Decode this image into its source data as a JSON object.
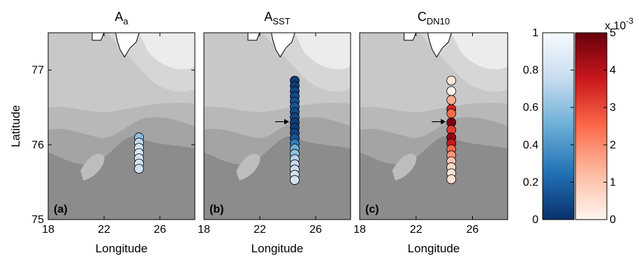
{
  "chart_data": [
    {
      "type": "scatter",
      "title": {
        "main": "A",
        "sub": "a"
      },
      "panel_label": "(a)",
      "xlabel": "Longitude",
      "ylabel": "Latitude",
      "xlim": [
        18,
        28.5
      ],
      "ylim": [
        75,
        77.5
      ],
      "xticks": [
        "18",
        "22",
        "26"
      ],
      "yticks": [
        "75",
        "76",
        "77"
      ],
      "colormap": "blues",
      "points": {
        "lon": 24.5,
        "lat": [
          76.1,
          76.03,
          75.96,
          75.89,
          75.82,
          75.75,
          75.68
        ],
        "value": [
          0.6,
          0.75,
          0.82,
          0.85,
          0.83,
          0.82,
          0.8
        ]
      }
    },
    {
      "type": "scatter",
      "title": {
        "main": "A",
        "sub": "SST"
      },
      "panel_label": "(b)",
      "xlabel": "Longitude",
      "xlim": [
        18,
        28.5
      ],
      "ylim": [
        75,
        77.5
      ],
      "xticks": [
        "18",
        "22",
        "26"
      ],
      "colormap": "blues",
      "arrow_lat": 76.31,
      "points": {
        "lon": 24.5,
        "lat": [
          76.86,
          76.79,
          76.72,
          76.65,
          76.58,
          76.51,
          76.44,
          76.37,
          76.3,
          76.23,
          76.16,
          76.09,
          76.02,
          75.95,
          75.88,
          75.81,
          75.74,
          75.67,
          75.6,
          75.53
        ],
        "value": [
          0.05,
          0.05,
          0.08,
          0.1,
          0.12,
          0.15,
          0.1,
          0.08,
          0.05,
          0.05,
          0.08,
          0.15,
          0.3,
          0.5,
          0.6,
          0.7,
          0.75,
          0.78,
          0.8,
          0.82
        ]
      }
    },
    {
      "type": "scatter",
      "title": {
        "main": "C",
        "sub": "DN10"
      },
      "panel_label": "(c)",
      "xlabel": "Longitude",
      "xlim": [
        18,
        28.5
      ],
      "ylim": [
        75,
        77.5
      ],
      "xticks": [
        "18",
        "22",
        "26"
      ],
      "colormap": "reds",
      "arrow_lat": 76.31,
      "points": {
        "lon": 24.5,
        "lat": [
          76.86,
          76.72,
          76.6,
          76.48,
          76.42,
          76.3,
          76.2,
          76.1,
          76.02,
          75.94,
          75.86,
          75.78,
          75.7,
          75.62,
          75.54
        ],
        "value": [
          0.3,
          0.05,
          1.5,
          3.5,
          2.5,
          4.8,
          3.2,
          4.5,
          3.8,
          2.5,
          1.8,
          1.0,
          0.6,
          0.4,
          0.5
        ]
      }
    }
  ],
  "colorbars": [
    {
      "name": "blues",
      "min": 0,
      "max": 1,
      "ticks": [
        "0",
        "0.2",
        "0.4",
        "0.6",
        "0.8",
        "1"
      ],
      "stops": [
        "#08306b",
        "#2171b5",
        "#6baed6",
        "#c6dbef",
        "#f7fbff"
      ]
    },
    {
      "name": "reds",
      "min": 0,
      "max": 5,
      "ticks": [
        "0",
        "1",
        "2",
        "3",
        "4",
        "5"
      ],
      "exponent_label": "x 10",
      "exponent": "-3",
      "stops": [
        "#fff5f0",
        "#fcbba1",
        "#fb6a4a",
        "#cb181d",
        "#67000d"
      ]
    }
  ],
  "colors": {
    "background": "#ffffff",
    "land": "#ffffff",
    "arrow": "#000000"
  }
}
